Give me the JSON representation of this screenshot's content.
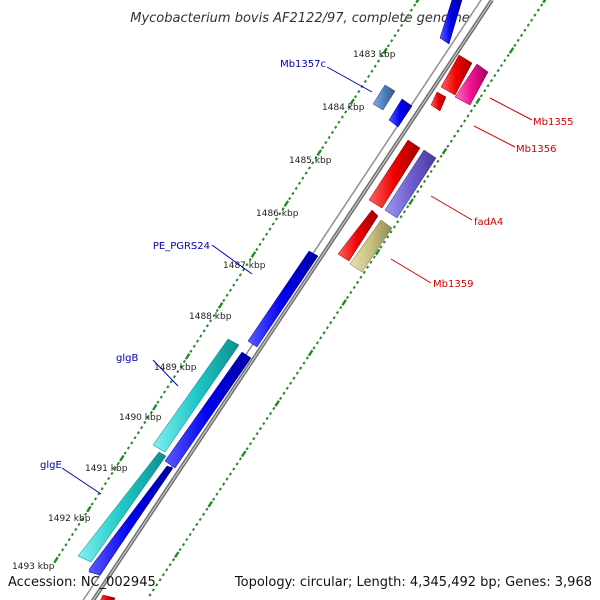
{
  "title": "Mycobacterium bovis AF2122/97, complete genome",
  "footer": {
    "accession": "Accession: NC_002945",
    "topology": "Topology: circular; Length: 4,345,492 bp; Genes: 3,968"
  },
  "ticks": [
    "1483 kbp",
    "1484 kbp",
    "1485 kbp",
    "1486 kbp",
    "1487 kbp",
    "1488 kbp",
    "1489 kbp",
    "1490 kbp",
    "1491 kbp",
    "1492 kbp",
    "1493 kbp"
  ],
  "labels_left": [
    "Mb1357c",
    "PE_PGRS24",
    "glgB",
    "glgE"
  ],
  "labels_right": [
    "Mb1355",
    "Mb1356",
    "fadA4",
    "Mb1359"
  ],
  "colors": {
    "forward_label": "#cc0000",
    "reverse_label": "#0000aa",
    "backbone": "#808080",
    "dots": "#228b22",
    "red_gene": "#ee0000",
    "blue_gene": "#0000ee",
    "cyan_gene": "#20c8c8",
    "pink_gene": "#ee1090",
    "purple_gene": "#7060d0",
    "olive_gene": "#c8c080",
    "steel_gene": "#5080c0"
  }
}
